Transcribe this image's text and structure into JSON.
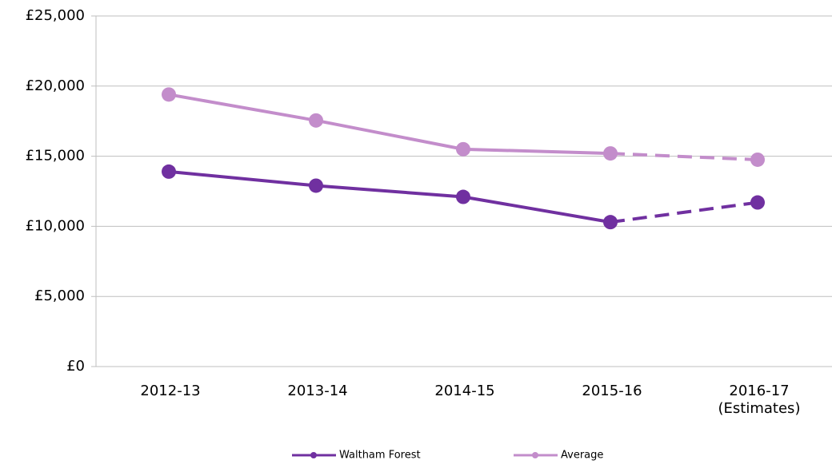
{
  "chart_data": {
    "type": "line",
    "categories": [
      "2012-13",
      "2013-14",
      "2014-15",
      "2015-16",
      "2016-17\n(Estimates)"
    ],
    "series": [
      {
        "name": "Waltham Forest",
        "color": "#7030a0",
        "values": [
          13900,
          12900,
          12100,
          10300,
          11700
        ]
      },
      {
        "name": "Average",
        "color": "#c38dcb",
        "values": [
          19400,
          17550,
          15500,
          15200,
          14750
        ]
      }
    ],
    "dashed_after_index": 3,
    "ylim": [
      0,
      25000
    ],
    "yticks": [
      {
        "value": 0,
        "label": "£0"
      },
      {
        "value": 5000,
        "label": "£5,000"
      },
      {
        "value": 10000,
        "label": "£10,000"
      },
      {
        "value": 15000,
        "label": "£15,000"
      },
      {
        "value": 20000,
        "label": "£20,000"
      },
      {
        "value": 25000,
        "label": "£25,000"
      }
    ],
    "grid": true
  }
}
